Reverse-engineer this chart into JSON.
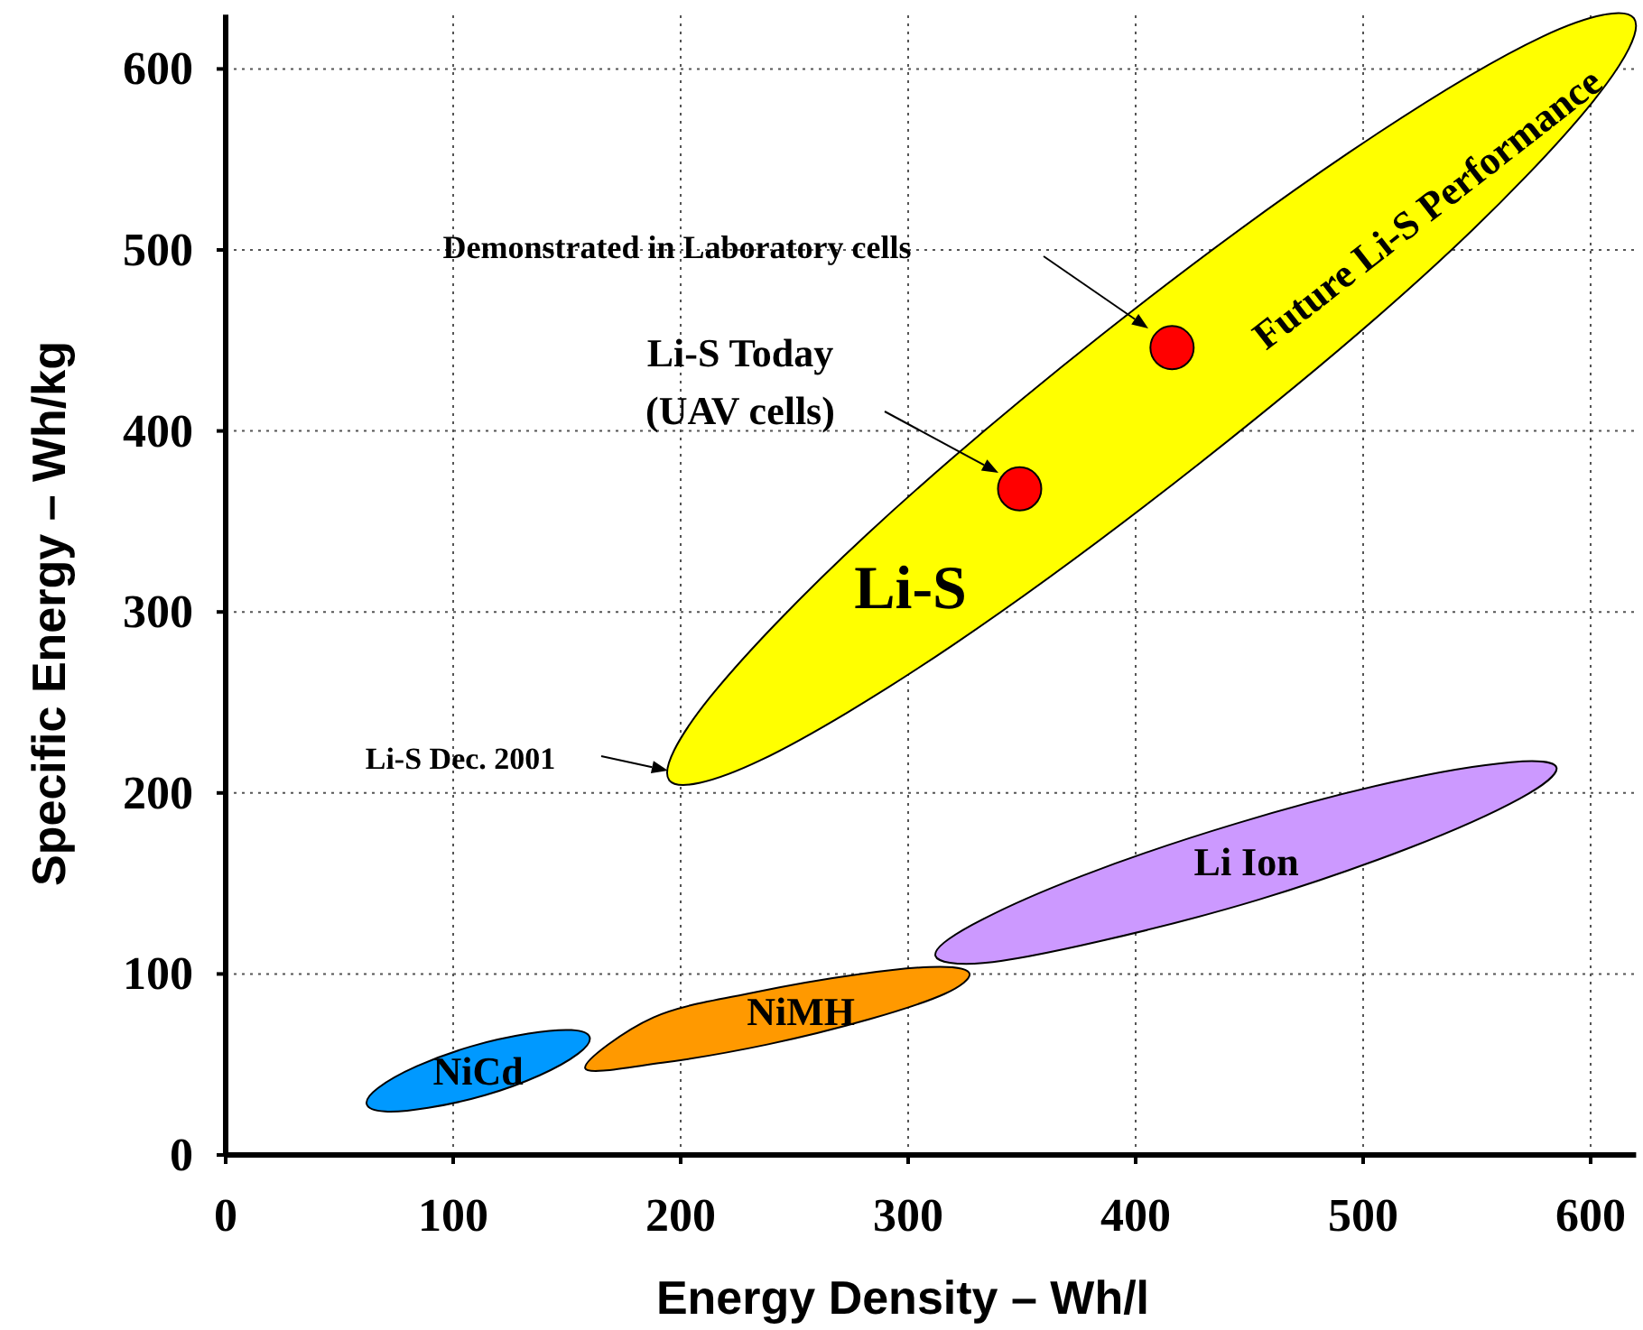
{
  "chart_data": {
    "type": "area",
    "xlabel": "Energy Density – Wh/l",
    "ylabel": "Specific Energy – Wh/kg",
    "xlim": [
      0,
      620
    ],
    "ylim": [
      0,
      630
    ],
    "xticks": [
      0,
      100,
      200,
      300,
      400,
      500,
      600
    ],
    "yticks": [
      0,
      100,
      200,
      300,
      400,
      500,
      600
    ],
    "grid": true,
    "series": [
      {
        "name": "Li-S",
        "color": "#ffff00",
        "x": [
          619,
          601,
          532,
          429,
          320,
          235,
          195,
          213,
          282,
          385,
          494,
          579
        ],
        "values": [
          628,
          582,
          492,
          383,
          282,
          218,
          207,
          253,
          343,
          453,
          554,
          618
        ]
      },
      {
        "name": "Li Ion",
        "color": "#cc99ff",
        "x": [
          585,
          569,
          521,
          454,
          384,
          333,
          312,
          328,
          376,
          444,
          513,
          565
        ],
        "values": [
          214,
          197,
          170,
          141,
          118,
          106,
          110,
          127,
          154,
          183,
          206,
          217
        ]
      },
      {
        "name": "NiMH",
        "color": "#ff9900",
        "x": [
          327,
          316,
          283,
          238,
          192,
          158,
          188,
          233,
          279,
          314
        ],
        "values": [
          100,
          89,
          75,
          61,
          51,
          48,
          76,
          90,
          100,
          104
        ]
      },
      {
        "name": "NiCd",
        "color": "#0099ff",
        "x": [
          160,
          155,
          138,
          114,
          89,
          70,
          62,
          67,
          84,
          108,
          133,
          152
        ],
        "values": [
          65,
          56,
          44,
          33,
          26,
          24,
          28,
          37,
          49,
          60,
          67,
          69
        ]
      },
      {
        "type": "scatter",
        "color": "#ff0000",
        "marker": "circle",
        "x": [
          349,
          416
        ],
        "values": [
          368,
          446
        ]
      }
    ],
    "annotations": [
      "Demonstrated in Laboratory cells",
      "Li-S Today\n(UAV cells)",
      "Li-S Dec. 2001",
      "Future Li-S Performance"
    ]
  }
}
